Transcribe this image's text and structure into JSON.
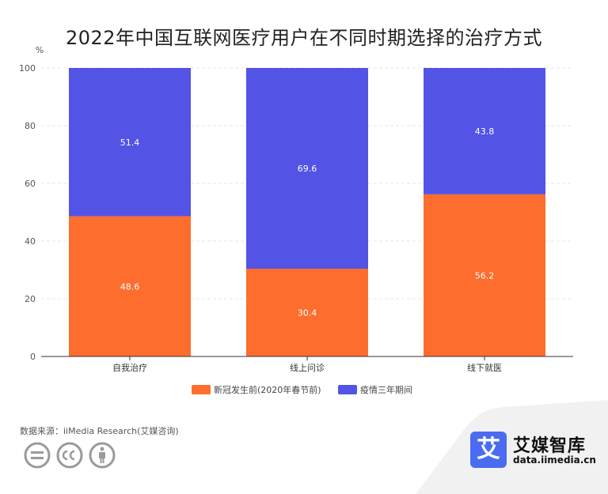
{
  "title": "2022年中国互联网医疗用户在不同时期选择的治疗方式",
  "source": "数据来源：iiMedia Research(艾媒咨询)",
  "brand": {
    "logo_char": "艾",
    "name": "艾媒智库",
    "url": "data.iimedia.cn"
  },
  "colors": {
    "series1": "#fd6d2d",
    "series2": "#5353e6",
    "grid": "#e6e6e6",
    "axis": "#333333"
  },
  "chart_data": {
    "type": "bar",
    "stacked": true,
    "ylabel": "%",
    "ylim": [
      0,
      100
    ],
    "yticks": [
      0,
      20,
      40,
      60,
      80,
      100
    ],
    "grid": true,
    "legend_position": "bottom",
    "categories": [
      "自我治疗",
      "线上问诊",
      "线下就医"
    ],
    "series": [
      {
        "name": "新冠发生前(2020年春节前)",
        "values": [
          48.6,
          30.4,
          56.2
        ],
        "color": "#fd6d2d"
      },
      {
        "name": "疫情三年期间",
        "values": [
          51.4,
          69.6,
          43.8
        ],
        "color": "#5353e6"
      }
    ]
  }
}
